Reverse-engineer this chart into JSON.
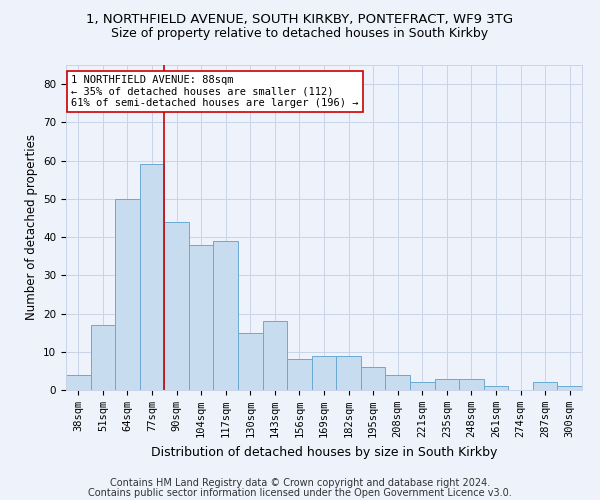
{
  "title_line1": "1, NORTHFIELD AVENUE, SOUTH KIRKBY, PONTEFRACT, WF9 3TG",
  "title_line2": "Size of property relative to detached houses in South Kirkby",
  "xlabel": "Distribution of detached houses by size in South Kirkby",
  "ylabel": "Number of detached properties",
  "categories": [
    "38sqm",
    "51sqm",
    "64sqm",
    "77sqm",
    "90sqm",
    "104sqm",
    "117sqm",
    "130sqm",
    "143sqm",
    "156sqm",
    "169sqm",
    "182sqm",
    "195sqm",
    "208sqm",
    "221sqm",
    "235sqm",
    "248sqm",
    "261sqm",
    "274sqm",
    "287sqm",
    "300sqm"
  ],
  "values": [
    4,
    17,
    50,
    59,
    44,
    38,
    39,
    15,
    18,
    8,
    9,
    9,
    6,
    4,
    2,
    3,
    3,
    1,
    0,
    2,
    1
  ],
  "bar_color": "#c8dcf0",
  "bar_edge_color": "#6aaad4",
  "vline_x": 3.5,
  "vline_color": "#cc0000",
  "annotation_text": "1 NORTHFIELD AVENUE: 88sqm\n← 35% of detached houses are smaller (112)\n61% of semi-detached houses are larger (196) →",
  "annotation_box_color": "#ffffff",
  "annotation_box_edge": "#cc0000",
  "ylim": [
    0,
    85
  ],
  "yticks": [
    0,
    10,
    20,
    30,
    40,
    50,
    60,
    70,
    80
  ],
  "grid_color": "#c8d4e8",
  "footer_line1": "Contains HM Land Registry data © Crown copyright and database right 2024.",
  "footer_line2": "Contains public sector information licensed under the Open Government Licence v3.0.",
  "bg_color": "#eef2fa",
  "title_fontsize": 9.5,
  "subtitle_fontsize": 9,
  "xlabel_fontsize": 9,
  "ylabel_fontsize": 8.5,
  "tick_fontsize": 7.5,
  "footer_fontsize": 7,
  "ann_fontsize": 7.5
}
